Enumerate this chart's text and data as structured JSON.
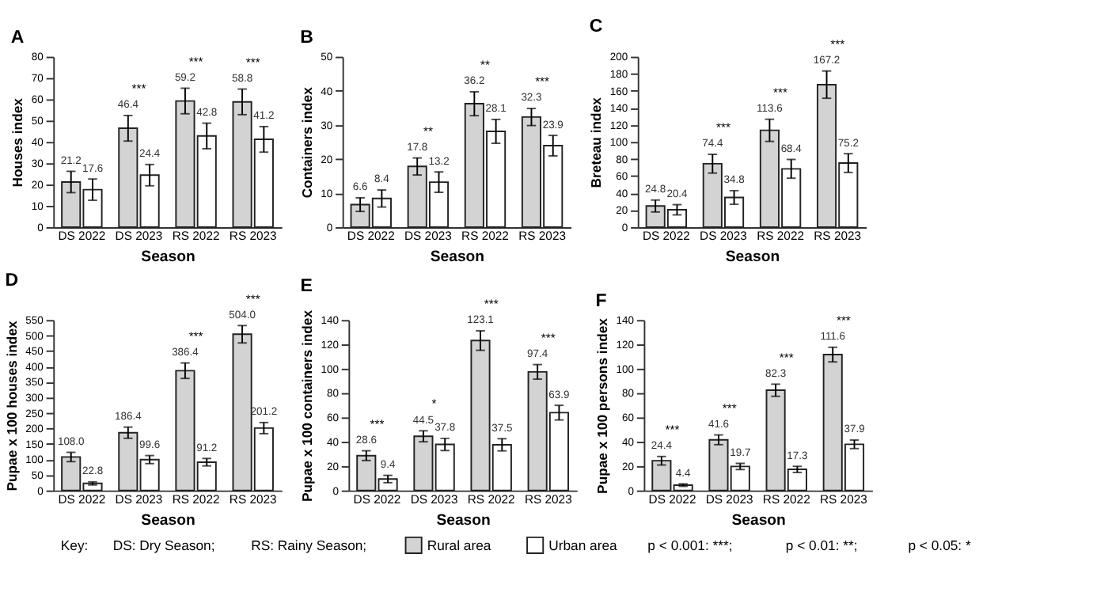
{
  "chart_data": [
    {
      "type": "bar",
      "title": "A",
      "xlabel": "Season",
      "ylabel": "Houses index",
      "categories": [
        "DS 2022",
        "DS 2023",
        "RS 2022",
        "RS 2023"
      ],
      "ylim": [
        0,
        80
      ],
      "yticks": [
        0,
        10,
        20,
        30,
        40,
        50,
        60,
        70,
        80
      ],
      "data_labels": true,
      "legend": "bottom",
      "series": [
        {
          "name": "Rural area",
          "color": "#d3d3d3",
          "values": [
            21.2,
            46.4,
            59.2,
            58.8
          ],
          "errors": [
            5,
            6,
            6,
            6
          ]
        },
        {
          "name": "Urban area",
          "color": "#ffffff",
          "values": [
            17.6,
            24.4,
            42.8,
            41.2
          ],
          "errors": [
            5,
            5,
            6,
            6
          ]
        }
      ],
      "annotations": [
        "***",
        "***",
        "***"
      ]
    },
    {
      "type": "bar",
      "title": "B",
      "xlabel": "Season",
      "ylabel": "Containers index",
      "categories": [
        "DS 2022",
        "DS 2023",
        "RS 2022",
        "RS 2023"
      ],
      "ylim": [
        0,
        50
      ],
      "yticks": [
        0,
        10,
        20,
        30,
        40,
        50
      ],
      "data_labels": true,
      "series": [
        {
          "name": "Rural area",
          "color": "#d3d3d3",
          "values": [
            6.6,
            17.8,
            36.2,
            32.3
          ],
          "errors": [
            2,
            2.5,
            3.5,
            2.5
          ]
        },
        {
          "name": "Urban area",
          "color": "#ffffff",
          "values": [
            8.4,
            13.2,
            28.1,
            23.9
          ],
          "errors": [
            2.5,
            3,
            3.5,
            3
          ]
        }
      ],
      "annotations": [
        "**",
        "**",
        "***"
      ]
    },
    {
      "type": "bar",
      "title": "C",
      "xlabel": "Season",
      "ylabel": "Breteau index",
      "categories": [
        "DS 2022",
        "DS 2023",
        "RS 2022",
        "RS 2023"
      ],
      "ylim": [
        0,
        200
      ],
      "yticks": [
        0,
        20,
        40,
        60,
        80,
        100,
        120,
        140,
        160,
        180,
        200
      ],
      "data_labels": true,
      "series": [
        {
          "name": "Rural area",
          "color": "#d3d3d3",
          "values": [
            24.8,
            74.4,
            113.6,
            167.2
          ],
          "errors": [
            7,
            11,
            13,
            16
          ]
        },
        {
          "name": "Urban area",
          "color": "#ffffff",
          "values": [
            20.4,
            34.8,
            68.4,
            75.2
          ],
          "errors": [
            6,
            8,
            11,
            11
          ]
        }
      ],
      "annotations": [
        "***",
        "***",
        "***"
      ]
    },
    {
      "type": "bar",
      "title": "D",
      "xlabel": "Season",
      "ylabel": "Pupae x 100 houses index",
      "categories": [
        "DS 2022",
        "DS 2023",
        "RS 2022",
        "RS 2023"
      ],
      "ylim": [
        0,
        550
      ],
      "yticks": [
        0,
        50,
        100,
        150,
        200,
        250,
        300,
        350,
        400,
        450,
        500,
        550
      ],
      "series": [
        {
          "name": "Rural area",
          "color": "#d3d3d3",
          "values": [
            108.0,
            186.4,
            386.4,
            504.0
          ],
          "errors": [
            15,
            18,
            25,
            28
          ],
          "value_labels": [
            "108.0",
            "186.4",
            "386.4",
            "504.0"
          ]
        },
        {
          "name": "Urban area",
          "color": "#ffffff",
          "values": [
            22.8,
            99.6,
            91.2,
            201.2
          ],
          "errors": [
            5,
            13,
            12,
            18
          ],
          "value_labels": [
            "22.8",
            "99.6",
            "91.2",
            "201.2"
          ]
        }
      ],
      "annotations": [
        "***",
        "***"
      ]
    },
    {
      "type": "bar",
      "title": "E",
      "xlabel": "Season",
      "ylabel": "Pupae x 100 containers index",
      "categories": [
        "DS 2022",
        "DS 2023",
        "RS 2022",
        "RS 2023"
      ],
      "ylim": [
        0,
        140
      ],
      "yticks": [
        0,
        20,
        40,
        60,
        80,
        100,
        120,
        140
      ],
      "data_labels": true,
      "series": [
        {
          "name": "Rural area",
          "color": "#d3d3d3",
          "values": [
            28.6,
            44.5,
            123.1,
            97.4
          ],
          "errors": [
            4,
            4.5,
            8,
            6
          ]
        },
        {
          "name": "Urban area",
          "color": "#ffffff",
          "values": [
            9.4,
            37.8,
            37.5,
            63.9
          ],
          "errors": [
            3,
            5,
            5,
            6
          ]
        }
      ],
      "annotations": [
        "***",
        "*",
        "***",
        "***"
      ]
    },
    {
      "type": "bar",
      "title": "F",
      "xlabel": "Season",
      "ylabel": "Pupae x 100 persons index",
      "categories": [
        "DS 2022",
        "DS 2023",
        "RS 2022",
        "RS 2023"
      ],
      "ylim": [
        0,
        140
      ],
      "yticks": [
        0,
        20,
        40,
        60,
        80,
        100,
        120,
        140
      ],
      "data_labels": true,
      "series": [
        {
          "name": "Rural area",
          "color": "#d3d3d3",
          "values": [
            24.4,
            41.6,
            82.3,
            111.6
          ],
          "errors": [
            3.5,
            4,
            5,
            6
          ]
        },
        {
          "name": "Urban area",
          "color": "#ffffff",
          "values": [
            4.4,
            19.7,
            17.3,
            37.9
          ],
          "errors": [
            1,
            2.5,
            2.5,
            3.5
          ]
        }
      ],
      "annotations": [
        "***",
        "***",
        "***",
        "***"
      ]
    },
    {
      "type": "other",
      "annotations": [
        "Key:",
        "DS: Dry Season;",
        "RS: Rainy Season;",
        "p < 0.001: ***;",
        "p < 0.01: **;",
        "p < 0.05: *"
      ]
    }
  ]
}
